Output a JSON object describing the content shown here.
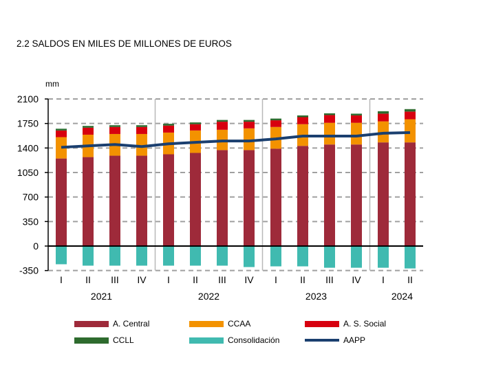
{
  "chart_data": {
    "type": "bar",
    "title": "2.2 SALDOS  EN MILES  DE MILLONES  DE EUROS",
    "ylabel": "mm",
    "ylim": [
      -350,
      2100
    ],
    "yticks": [
      2100,
      1750,
      1400,
      1050,
      700,
      350,
      0,
      -350
    ],
    "grid": true,
    "legend_position": "bottom",
    "categories": [
      "I",
      "II",
      "III",
      "IV",
      "I",
      "II",
      "III",
      "IV",
      "I",
      "II",
      "III",
      "IV",
      "I",
      "II"
    ],
    "years": [
      {
        "label": "2021",
        "quarters": 4
      },
      {
        "label": "2022",
        "quarters": 4
      },
      {
        "label": "2023",
        "quarters": 4
      },
      {
        "label": "2024",
        "quarters": 2
      }
    ],
    "series": [
      {
        "name": "A. Central",
        "type": "bar",
        "color": "#9e2a3a",
        "values": [
          1250,
          1270,
          1290,
          1290,
          1310,
          1330,
          1370,
          1370,
          1390,
          1430,
          1450,
          1450,
          1480,
          1480
        ]
      },
      {
        "name": "CCAA",
        "type": "bar",
        "color": "#f39200",
        "values": [
          305,
          320,
          310,
          310,
          310,
          320,
          290,
          310,
          310,
          310,
          310,
          310,
          300,
          330
        ]
      },
      {
        "name": "A. S. Social",
        "type": "bar",
        "color": "#d7000f",
        "values": [
          95,
          100,
          100,
          100,
          100,
          90,
          115,
          95,
          95,
          100,
          110,
          105,
          110,
          110
        ]
      },
      {
        "name": "CCLL",
        "type": "bar",
        "color": "#2e6b2e",
        "values": [
          25,
          25,
          25,
          25,
          25,
          25,
          25,
          25,
          25,
          25,
          25,
          25,
          35,
          35
        ]
      },
      {
        "name": "Consolidación",
        "type": "bar",
        "color": "#40bab0",
        "values": [
          -260,
          -280,
          -280,
          -280,
          -280,
          -280,
          -280,
          -300,
          -290,
          -290,
          -310,
          -310,
          -310,
          -320
        ]
      },
      {
        "name": "AAPP",
        "type": "line",
        "color": "#1a3f6f",
        "values": [
          1410,
          1430,
          1450,
          1420,
          1460,
          1480,
          1500,
          1500,
          1530,
          1570,
          1570,
          1570,
          1610,
          1620
        ]
      }
    ]
  }
}
